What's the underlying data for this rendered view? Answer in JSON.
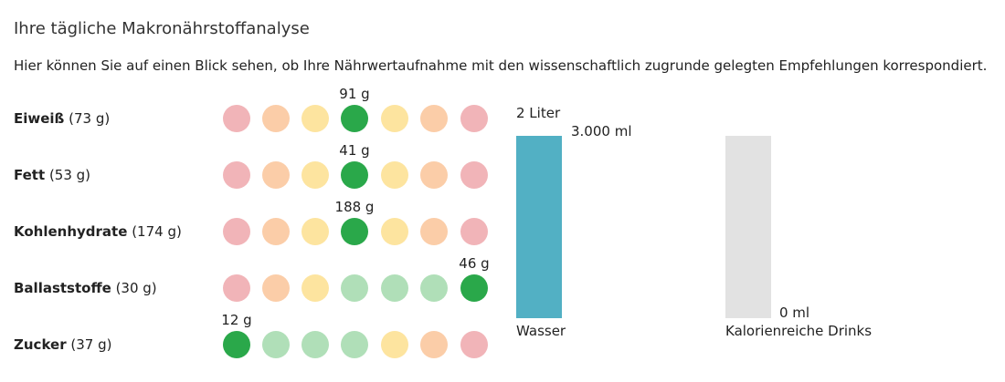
{
  "header": {
    "title": "Ihre tägliche Makronährstoffanalyse",
    "subtitle": "Hier können Sie auf einen Blick sehen, ob Ihre Nährwertaufnahme mit den wissenschaftlich zugrunde gelegten Empfehlungen korrespondiert."
  },
  "colors": {
    "red": "#f1b4b8",
    "orange": "#fbcda8",
    "yellow": "#fde49f",
    "light_green": "#b0dfb8",
    "green": "#2aa84a",
    "water": "#52b0c4",
    "drinks": "#e2e2e2"
  },
  "nutrients": [
    {
      "name": "Eiweiß",
      "target": "(73 g)",
      "amount": "91 g",
      "active_index": 3,
      "scale": [
        "red",
        "orange",
        "yellow",
        "green",
        "yellow",
        "orange",
        "red"
      ]
    },
    {
      "name": "Fett",
      "target": "(53 g)",
      "amount": "41 g",
      "active_index": 3,
      "scale": [
        "red",
        "orange",
        "yellow",
        "green",
        "yellow",
        "orange",
        "red"
      ]
    },
    {
      "name": "Kohlenhydrate",
      "target": "(174 g)",
      "amount": "188 g",
      "active_index": 3,
      "scale": [
        "red",
        "orange",
        "yellow",
        "green",
        "yellow",
        "orange",
        "red"
      ]
    },
    {
      "name": "Ballaststoffe",
      "target": "(30 g)",
      "amount": "46 g",
      "active_index": 6,
      "scale": [
        "red",
        "orange",
        "yellow",
        "light_green",
        "light_green",
        "light_green",
        "green"
      ]
    },
    {
      "name": "Zucker",
      "target": "(37 g)",
      "amount": "12 g",
      "active_index": 0,
      "scale": [
        "green",
        "light_green",
        "light_green",
        "light_green",
        "yellow",
        "orange",
        "red"
      ]
    }
  ],
  "drinks": {
    "water": {
      "label": "Wasser",
      "value": "3.000 ml",
      "target": "2 Liter",
      "fill_fraction": 1.0
    },
    "caloric": {
      "label": "Kalorienreiche Drinks",
      "value": "0 ml"
    }
  }
}
